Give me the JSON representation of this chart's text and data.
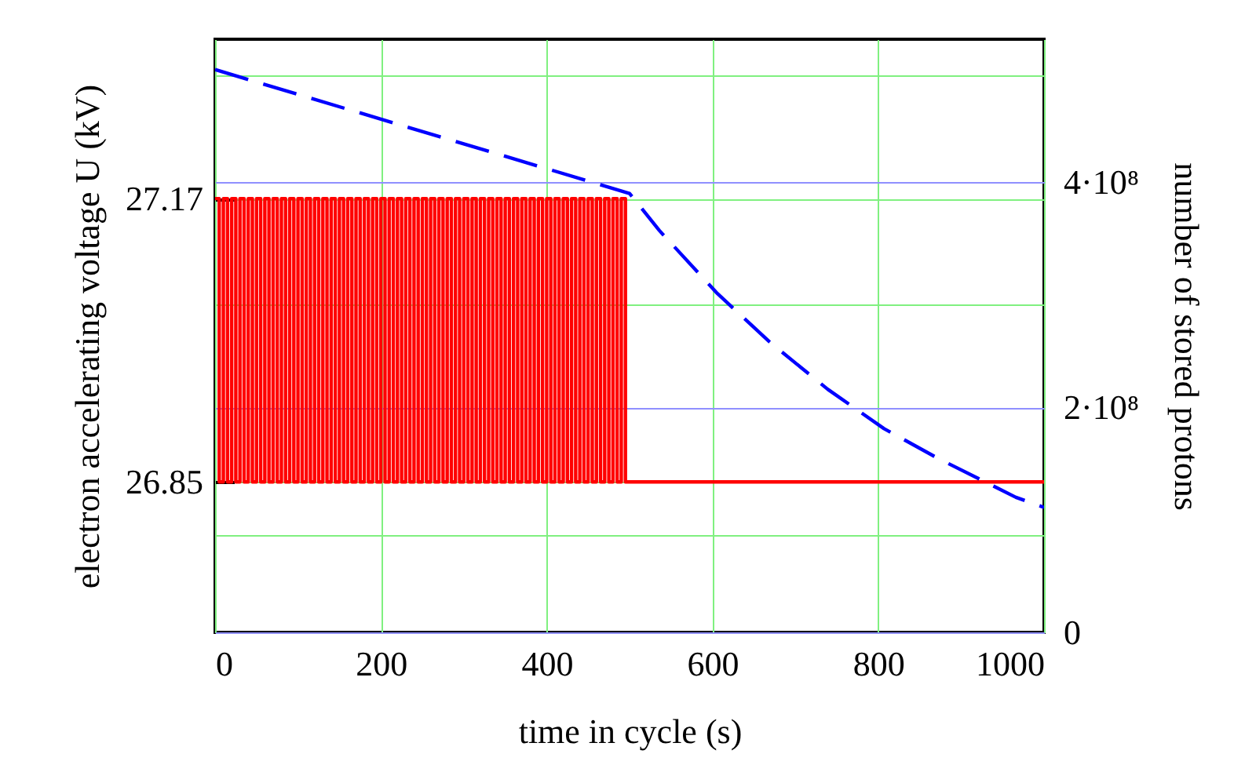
{
  "chart_data": {
    "type": "line",
    "xlabel": "time in cycle (s)",
    "ylabel": "electron accelerating voltage U (kV)",
    "y2label": "number of stored protons",
    "xlim": [
      0,
      1000
    ],
    "xticks": [
      0,
      200,
      400,
      600,
      800,
      1000
    ],
    "ylim": [
      26.68,
      27.35
    ],
    "yticks": [
      {
        "value": 26.79,
        "label": null
      },
      26.85,
      {
        "value": 27.05,
        "label": null
      },
      27.17,
      {
        "value": 27.31,
        "label": null
      }
    ],
    "y2lim": [
      0,
      527000000
    ],
    "y2ticks": [
      0,
      {
        "value": 200000000,
        "label": "2·10⁸"
      },
      {
        "value": 400000000,
        "label": "4·10⁸"
      }
    ],
    "grid": true,
    "series": [
      {
        "type": "step",
        "color": "#ff0000",
        "axis": "y",
        "line_style": "solid",
        "x": [
          0,
          5,
          10,
          15,
          20,
          25,
          30,
          35,
          40,
          45,
          50,
          55,
          60,
          65,
          70,
          75,
          80,
          85,
          90,
          95,
          100,
          105,
          110,
          115,
          120,
          125,
          130,
          135,
          140,
          145,
          150,
          155,
          160,
          165,
          170,
          175,
          180,
          185,
          190,
          195,
          200,
          205,
          210,
          215,
          220,
          225,
          230,
          235,
          240,
          245,
          250,
          255,
          260,
          265,
          270,
          275,
          280,
          285,
          290,
          295,
          300,
          305,
          310,
          315,
          320,
          325,
          330,
          335,
          340,
          345,
          350,
          355,
          360,
          365,
          370,
          375,
          380,
          385,
          390,
          395,
          400,
          405,
          410,
          415,
          420,
          425,
          430,
          435,
          440,
          445,
          450,
          455,
          460,
          465,
          470,
          475,
          480,
          485,
          490,
          495,
          500,
          1000
        ],
        "values": [
          27.17,
          26.85,
          27.17,
          26.85,
          27.17,
          26.85,
          27.17,
          26.85,
          27.17,
          26.85,
          27.17,
          26.85,
          27.17,
          26.85,
          27.17,
          26.85,
          27.17,
          26.85,
          27.17,
          26.85,
          27.17,
          26.85,
          27.17,
          26.85,
          27.17,
          26.85,
          27.17,
          26.85,
          27.17,
          26.85,
          27.17,
          26.85,
          27.17,
          26.85,
          27.17,
          26.85,
          27.17,
          26.85,
          27.17,
          26.85,
          27.17,
          26.85,
          27.17,
          26.85,
          27.17,
          26.85,
          27.17,
          26.85,
          27.17,
          26.85,
          27.17,
          26.85,
          27.17,
          26.85,
          27.17,
          26.85,
          27.17,
          26.85,
          27.17,
          26.85,
          27.17,
          26.85,
          27.17,
          26.85,
          27.17,
          26.85,
          27.17,
          26.85,
          27.17,
          26.85,
          27.17,
          26.85,
          27.17,
          26.85,
          27.17,
          26.85,
          27.17,
          26.85,
          27.17,
          26.85,
          27.17,
          26.85,
          27.17,
          26.85,
          27.17,
          26.85,
          27.17,
          26.85,
          27.17,
          26.85,
          27.17,
          26.85,
          27.17,
          26.85,
          27.17,
          26.85,
          27.17,
          26.85,
          27.17,
          26.85,
          26.85,
          26.85
        ]
      },
      {
        "color": "#0000ff",
        "axis": "y2",
        "line_style": "dashed",
        "x": [
          0,
          500,
          536,
          606,
          669,
          739,
          807,
          871,
          966,
          1000
        ],
        "values": [
          500000000,
          390000000,
          357000000,
          301000000,
          258000000,
          216000000,
          181000000,
          155000000,
          120000000,
          111000000
        ]
      }
    ]
  }
}
